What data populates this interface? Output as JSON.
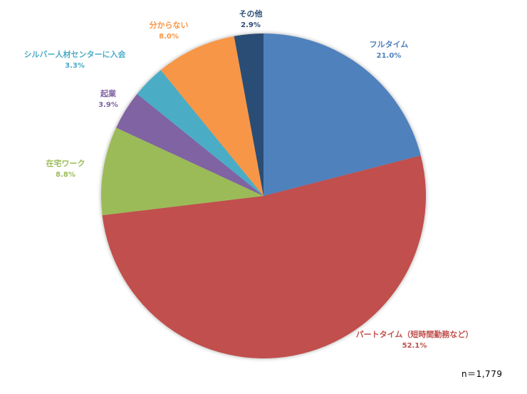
{
  "chart_data": {
    "type": "pie",
    "start_angle": "12 o'clock",
    "direction": "clockwise",
    "slices": [
      {
        "label": "フルタイム",
        "value": 21.0,
        "display": "21.0%",
        "color": "#4f81bd"
      },
      {
        "label": "パートタイム（短時間勤務など）",
        "value": 52.1,
        "display": "52.1%",
        "color": "#c0504d"
      },
      {
        "label": "在宅ワーク",
        "value": 8.8,
        "display": "8.8%",
        "color": "#9bbb59"
      },
      {
        "label": "起業",
        "value": 3.9,
        "display": "3.9%",
        "color": "#8064a2"
      },
      {
        "label": "シルバー人材センターに入会",
        "value": 3.3,
        "display": "3.3%",
        "color": "#4bacc6"
      },
      {
        "label": "分からない",
        "value": 8.0,
        "display": "8.0%",
        "color": "#f79646"
      },
      {
        "label": "その他",
        "value": 2.9,
        "display": "2.9%",
        "color": "#2c4d75"
      }
    ],
    "legend": "none (data labels outside slices)",
    "note": "n＝1,779"
  }
}
